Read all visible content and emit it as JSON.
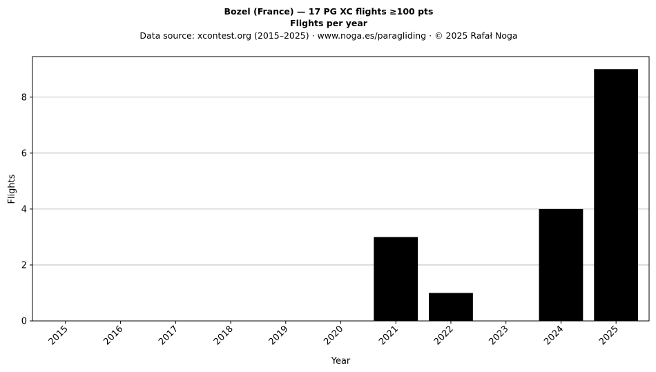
{
  "chart_data": {
    "type": "bar",
    "title": "Bozel (France)  —  17 PG XC flights ≥100 pts",
    "subtitle": "Flights per year",
    "source_line": "Data source: xcontest.org (2015–2025)  ·  www.noga.es/paragliding  ·  © 2025 Rafał Noga",
    "xlabel": "Year",
    "ylabel": "Flights",
    "categories": [
      "2015",
      "2016",
      "2017",
      "2018",
      "2019",
      "2020",
      "2021",
      "2022",
      "2023",
      "2024",
      "2025"
    ],
    "values": [
      0,
      0,
      0,
      0,
      0,
      0,
      3,
      1,
      0,
      4,
      9
    ],
    "ylim": [
      0,
      9.45
    ],
    "yticks": [
      0,
      2,
      4,
      6,
      8
    ],
    "grid": "horizontal",
    "legend": "none",
    "colors": {
      "bar": "#000000",
      "grid": "#b0b0b0",
      "axis": "#000000"
    }
  }
}
